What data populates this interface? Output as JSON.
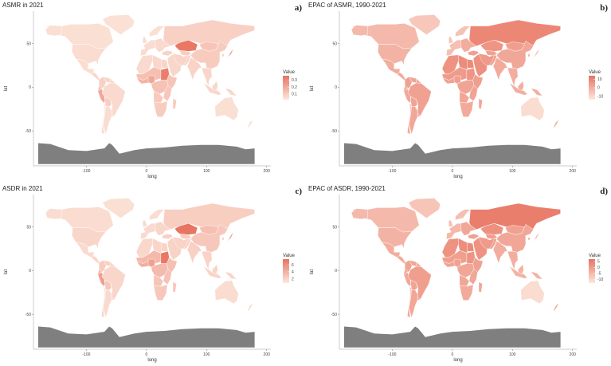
{
  "figure": {
    "panels": [
      {
        "id": "a",
        "title": "ASMR in 2021",
        "label": "a)",
        "legend": {
          "title": "Value",
          "ticks": [
            "0.3",
            "0.2",
            "0.1"
          ],
          "values": [
            0.3,
            0.2,
            0.1
          ],
          "min": 0.02,
          "max": 0.36
        },
        "colors": {
          "low": "#fce8dd",
          "high": "#e8725f"
        }
      },
      {
        "id": "b",
        "title": "EPAC of ASMR, 1990-2021",
        "label": "b)",
        "legend": {
          "title": "Value",
          "ticks": [
            "10",
            "0",
            "-10"
          ],
          "values": [
            10,
            0,
            -10
          ],
          "min": -14,
          "max": 14
        },
        "colors": {
          "low": "#fce8dd",
          "high": "#e8725f"
        }
      },
      {
        "id": "c",
        "title": "ASDR in 2021",
        "label": "c)",
        "legend": {
          "title": "Value",
          "ticks": [
            "6",
            "4",
            "2"
          ],
          "values": [
            6,
            4,
            2
          ],
          "min": 0.8,
          "max": 7.6
        },
        "colors": {
          "low": "#fce8dd",
          "high": "#e8725f"
        }
      },
      {
        "id": "d",
        "title": "EPAC of ASDR, 1990-2021",
        "label": "d)",
        "legend": {
          "title": "Value",
          "ticks": [
            "5",
            "0",
            "-5",
            "-10"
          ],
          "values": [
            5,
            0,
            -5,
            -10
          ],
          "min": -13,
          "max": 7
        },
        "colors": {
          "low": "#fce8dd",
          "high": "#e8725f"
        }
      }
    ],
    "axes": {
      "xlabel": "long",
      "ylabel": "lat",
      "xticks": [
        "-100",
        "0",
        "100",
        "200"
      ],
      "yticks": [
        "50",
        "0",
        "-50"
      ]
    },
    "no_data_color": "#7f7f7f",
    "border_color": "#ffffff"
  }
}
